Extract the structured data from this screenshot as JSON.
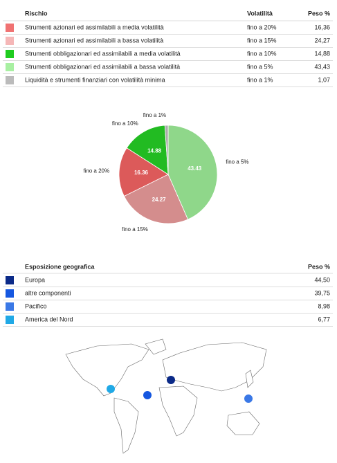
{
  "risk_table": {
    "headers": [
      "Rischio",
      "Volatilità",
      "Peso %"
    ],
    "rows": [
      {
        "color": "#f07272",
        "name": "Strumenti azionari ed assimilabili a media volatilità",
        "volatility": "fino a 20%",
        "weight": "16,36"
      },
      {
        "color": "#f5b7b7",
        "name": "Strumenti azionari ed assimilabili a bassa volatilità",
        "volatility": "fino a 15%",
        "weight": "24,27"
      },
      {
        "color": "#1fcc1f",
        "name": "Strumenti obbligazionari ed assimilabili a media volatilità",
        "volatility": "fino a 10%",
        "weight": "14,88"
      },
      {
        "color": "#a8f0a2",
        "name": "Strumenti obbligazionari ed assimilabili a bassa volatilità",
        "volatility": "fino a 5%",
        "weight": "43,43"
      },
      {
        "color": "#bbbbbb",
        "name": "Liquidità e strumenti finanziari con volatilità minima",
        "volatility": "fino a 1%",
        "weight": "1,07"
      }
    ]
  },
  "chart_data": {
    "type": "pie",
    "categories": [
      "fino a 5%",
      "fino a 15%",
      "fino a 20%",
      "fino a 10%",
      "fino a 1%"
    ],
    "values": [
      43.43,
      24.27,
      16.36,
      14.88,
      1.07
    ],
    "colors": [
      "#8fd78a",
      "#d48d8d",
      "#dc5a5a",
      "#22bb22",
      "#aaaaaa"
    ]
  },
  "geo_table": {
    "headers": [
      "Esposizione geografica",
      "Peso %"
    ],
    "rows": [
      {
        "color": "#0b2a88",
        "name": "Europa",
        "weight": "44,50"
      },
      {
        "color": "#1557e0",
        "name": "altre componenti",
        "weight": "39,75"
      },
      {
        "color": "#3a78e6",
        "name": "Pacifico",
        "weight": "8,98"
      },
      {
        "color": "#20a9e6",
        "name": "America del Nord",
        "weight": "6,77"
      }
    ]
  }
}
